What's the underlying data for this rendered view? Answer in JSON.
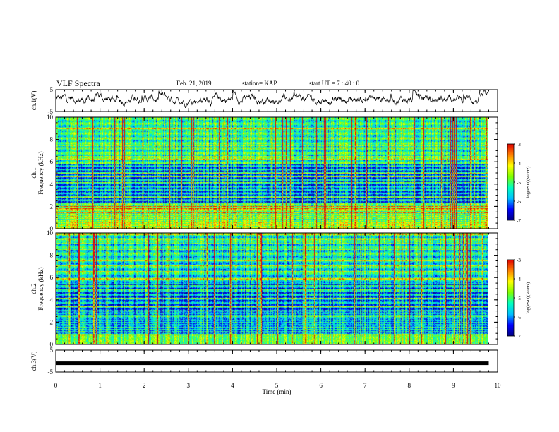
{
  "header": {
    "title": "VLF Spectra",
    "date": "Feb. 21, 2019",
    "station": "station= KAP",
    "start": "start  UT =   7 : 40 : 0"
  },
  "chart_data": [
    {
      "type": "line",
      "id": "ch1-waveform",
      "ylabel": "ch.1(V)",
      "ylim": [
        -5,
        5
      ],
      "yticks": [
        "5",
        "-5"
      ],
      "x_unit": "min",
      "xlim": [
        0,
        10
      ],
      "data_xlim": [
        0,
        9.8
      ],
      "description_values": "noisy voltage trace mostly between -3 and +4 V"
    },
    {
      "type": "heatmap",
      "id": "ch1-spectrogram",
      "ylabel": [
        "ch.1",
        "Frequency  (kHz)"
      ],
      "ylim": [
        0,
        10
      ],
      "yticks": [
        "0",
        "2",
        "4",
        "6",
        "8",
        "10"
      ],
      "xlim": [
        0,
        10
      ],
      "data_xlim": [
        0,
        9.8
      ],
      "colorbar": {
        "label": "log(PSD)(V²/Hz)",
        "range": [
          -7,
          -3
        ],
        "ticks": [
          "-3",
          "-4",
          "-5",
          "-6",
          "-7"
        ]
      }
    },
    {
      "type": "heatmap",
      "id": "ch2-spectrogram",
      "ylabel": [
        "ch.2",
        "Frequency  (kHz)"
      ],
      "ylim": [
        0,
        10
      ],
      "yticks": [
        "0",
        "2",
        "4",
        "6",
        "8",
        "10"
      ],
      "xlim": [
        0,
        10
      ],
      "data_xlim": [
        0,
        9.8
      ],
      "colorbar": {
        "label": "log(PSD)(V²/Hz)",
        "range": [
          -7,
          -3
        ],
        "ticks": [
          "-3",
          "-4",
          "-5",
          "-6",
          "-7"
        ]
      }
    },
    {
      "type": "line",
      "id": "ch3-waveform",
      "ylabel": "ch.3(V)",
      "ylim": [
        -5,
        5
      ],
      "yticks": [
        "5",
        "-5"
      ],
      "xlim": [
        0,
        10
      ],
      "data_xlim": [
        0,
        9.8
      ],
      "value": -1
    }
  ],
  "xaxis": {
    "label": "Time  (min)",
    "ticks": [
      "0",
      "1",
      "2",
      "3",
      "4",
      "5",
      "6",
      "7",
      "8",
      "9",
      "10"
    ]
  },
  "colors": {
    "colormap": [
      "#000080",
      "#0000ff",
      "#00c0ff",
      "#00ffc0",
      "#80ff00",
      "#ffff00",
      "#ff8000",
      "#e00000"
    ]
  }
}
